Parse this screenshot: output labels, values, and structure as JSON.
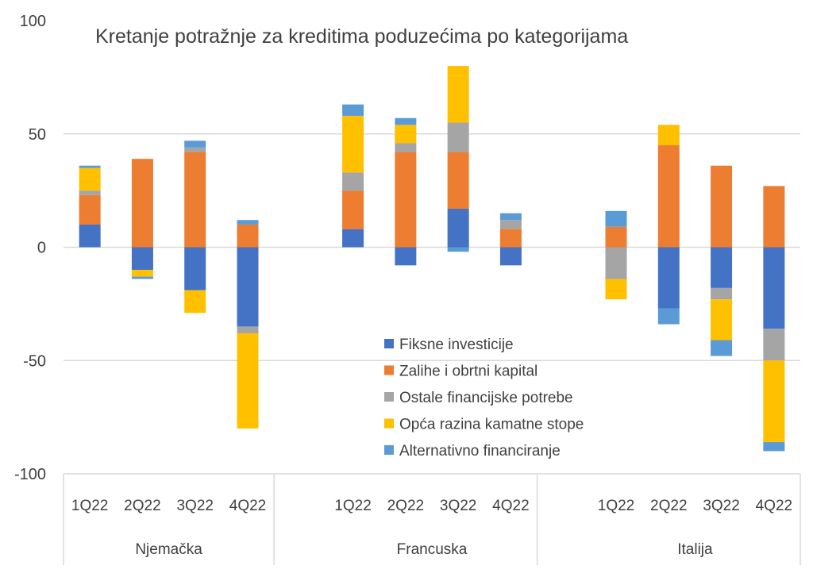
{
  "chart_data": {
    "type": "bar",
    "stacked": true,
    "title": "Kretanje potražnje za kreditima poduzećima po kategorijama",
    "xlabel": "",
    "ylabel": "",
    "ylim": [
      -100,
      100
    ],
    "yticks": [
      "100",
      "50",
      "0",
      "-50",
      "-100"
    ],
    "ytick_values": [
      100,
      50,
      0,
      -50,
      -100
    ],
    "grid": true,
    "legend_position": "center-bottom",
    "groups": [
      {
        "name": "Njemačka",
        "categories": [
          "1Q22",
          "2Q22",
          "3Q22",
          "4Q22"
        ]
      },
      {
        "name": "Francuska",
        "categories": [
          "1Q22",
          "2Q22",
          "3Q22",
          "4Q22"
        ]
      },
      {
        "name": "Italija",
        "categories": [
          "1Q22",
          "2Q22",
          "3Q22",
          "4Q22"
        ]
      }
    ],
    "series": [
      {
        "name": "Fiksne investicije",
        "color": "#4472C4",
        "values": [
          10,
          -10,
          -19,
          -35,
          8,
          -8,
          17,
          -8,
          0,
          -27,
          -18,
          -36
        ]
      },
      {
        "name": "Zalihe i obrtni kapital",
        "color": "#ED7D31",
        "values": [
          13,
          39,
          42,
          10,
          17,
          42,
          25,
          8,
          9,
          45,
          36,
          27
        ]
      },
      {
        "name": "Ostale financijske potrebe",
        "color": "#A5A5A5",
        "values": [
          2,
          0,
          2,
          -3,
          8,
          4,
          13,
          4,
          -14,
          0,
          -5,
          -14
        ]
      },
      {
        "name": "Opća razina kamatne stope",
        "color": "#FFC000",
        "values": [
          10,
          -3,
          -10,
          -42,
          25,
          8,
          25,
          0,
          -9,
          9,
          -18,
          -36
        ]
      },
      {
        "name": "Alternativno financiranje",
        "color": "#5B9BD5",
        "values": [
          1,
          -1,
          3,
          2,
          5,
          3,
          -2,
          3,
          7,
          -7,
          -7,
          -4
        ]
      }
    ]
  }
}
